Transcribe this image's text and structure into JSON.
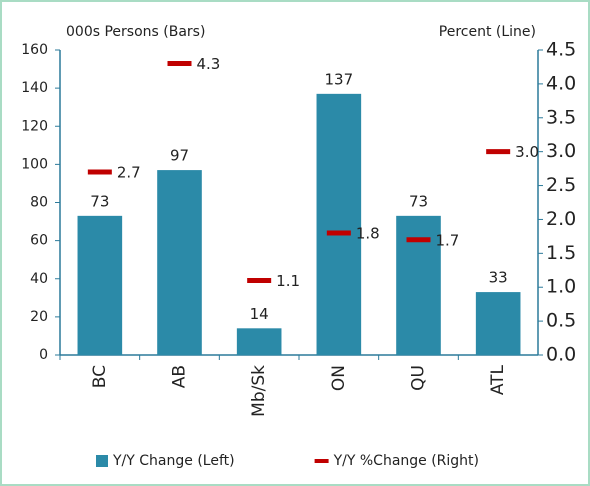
{
  "chart_data": {
    "type": "bar",
    "y_label": "000s Persons (Bars)",
    "y2_label": "Percent (Line)",
    "categories": [
      "BC",
      "AB",
      "Mb/Sk",
      "ON",
      "QU",
      "ATL"
    ],
    "series": [
      {
        "name": "Y/Y Change (Left)",
        "type": "bar",
        "color": "#2b8aa8",
        "values": [
          73,
          97,
          14,
          137,
          73,
          33
        ]
      },
      {
        "name": "Y/Y %Change (Right)",
        "type": "line",
        "axis": "y2",
        "markers_only": true,
        "color": "#c00000",
        "values": [
          2.7,
          4.3,
          1.1,
          1.8,
          1.7,
          3.0
        ],
        "value_labels": [
          "2.7",
          "4.3",
          "1.1",
          "1.8",
          "1.7",
          "3.0"
        ]
      }
    ],
    "ylim": [
      0,
      160
    ],
    "yticks": [
      0,
      20,
      40,
      60,
      80,
      100,
      120,
      140,
      160
    ],
    "y2lim": [
      0,
      4.5
    ],
    "y2ticks": [
      {
        "value": 0,
        "label": "0.0"
      },
      0.5,
      {
        "value": 1,
        "label": "1.0"
      },
      1.5,
      {
        "value": 2,
        "label": "2.0"
      },
      2.5,
      {
        "value": 3,
        "label": "3.0"
      },
      3.5,
      {
        "value": 4,
        "label": "4.0"
      },
      4.5
    ],
    "legend": "bottom"
  }
}
